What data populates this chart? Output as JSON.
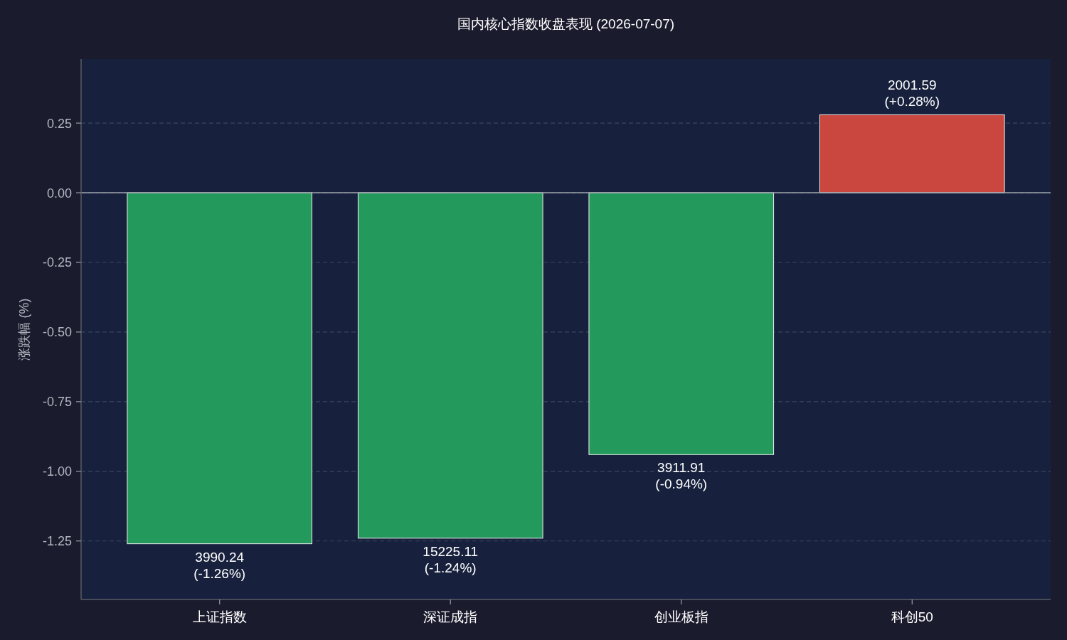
{
  "chart_data": {
    "type": "bar",
    "title": "国内核心指数收盘表现 (2026-07-07)",
    "ylabel": "涨跌幅 (%)",
    "categories": [
      "上证指数",
      "深证成指",
      "创业板指",
      "科创50"
    ],
    "values": [
      -1.26,
      -1.24,
      -0.94,
      0.28
    ],
    "colors": [
      "#239a5b",
      "#239a5b",
      "#239a5b",
      "#c9473e"
    ],
    "value_labels": [
      "3990.24\n(-1.26%)",
      "15225.11\n(-1.24%)",
      "3911.91\n(-0.94%)",
      "2001.59\n(+0.28%)"
    ],
    "ylim": [
      -1.46,
      0.48
    ],
    "yticks": [
      {
        "value": 0.25,
        "label": "0.25"
      },
      {
        "value": 0,
        "label": "0.00"
      },
      {
        "value": -0.25,
        "label": "-0.25"
      },
      {
        "value": -0.5,
        "label": "-0.50"
      },
      {
        "value": -0.75,
        "label": "-0.75"
      },
      {
        "value": -1,
        "label": "-1.00"
      },
      {
        "value": -1.25,
        "label": "-1.25"
      }
    ],
    "grid": "y",
    "ref_lines": [
      {
        "axis": "y",
        "value": 0,
        "color": "#9ca3ad"
      }
    ]
  }
}
